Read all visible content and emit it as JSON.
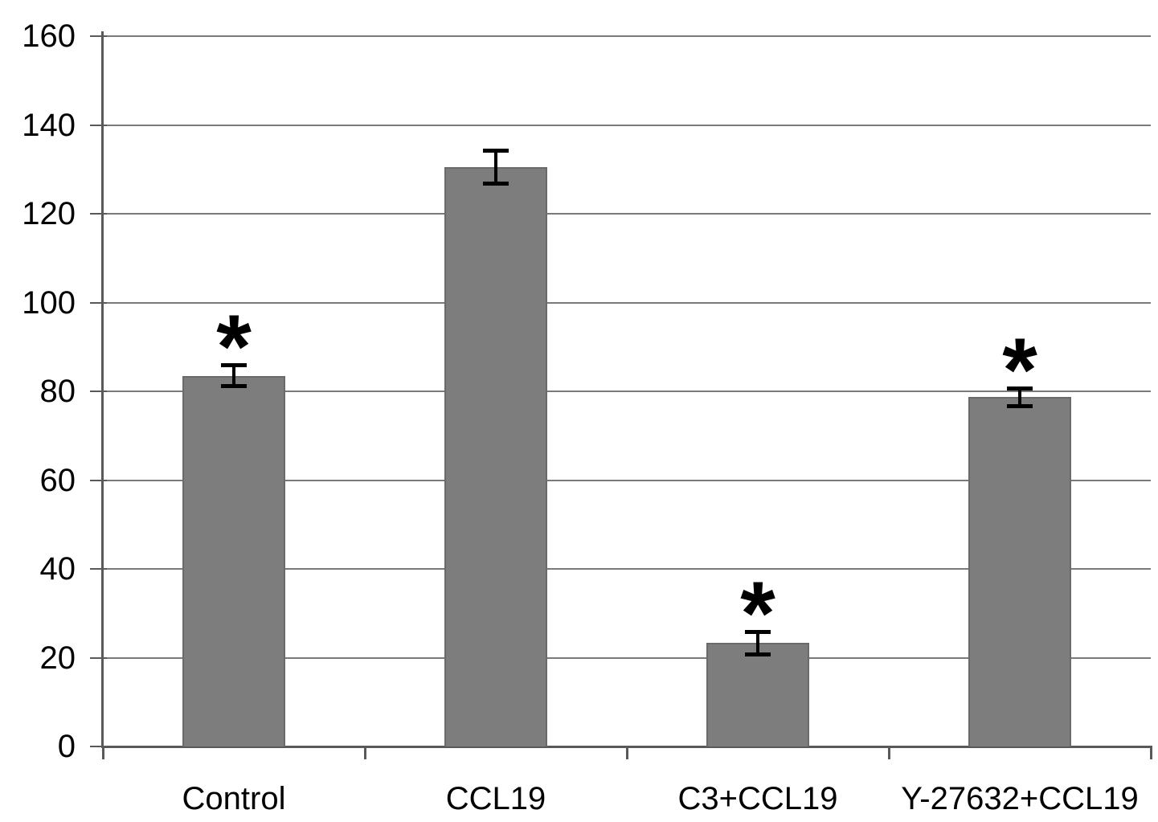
{
  "chart_data": {
    "type": "bar",
    "title": "",
    "xlabel": "",
    "ylabel": "",
    "categories": [
      "Control",
      "CCL19",
      "C3+CCL19",
      "Y-27632+CCL19"
    ],
    "values": [
      83.5,
      130.5,
      23.3,
      78.7
    ],
    "errors": [
      2.5,
      3.8,
      2.6,
      2.1
    ],
    "significance": [
      "*",
      "",
      "*",
      "*"
    ],
    "ylim": [
      0,
      160
    ],
    "ytick_step": 20,
    "ytick_labels": [
      "0",
      "20",
      "40",
      "60",
      "80",
      "100",
      "120",
      "140",
      "160"
    ],
    "grid": true,
    "legend_position": "none",
    "colors": {
      "bar_fill": "#7d7d7d",
      "bar_border": "#6a6a6a",
      "gridline": "#7a7a7a",
      "axis": "#595959",
      "error_bar": "#000000",
      "text": "#000000",
      "background": "#ffffff"
    }
  }
}
